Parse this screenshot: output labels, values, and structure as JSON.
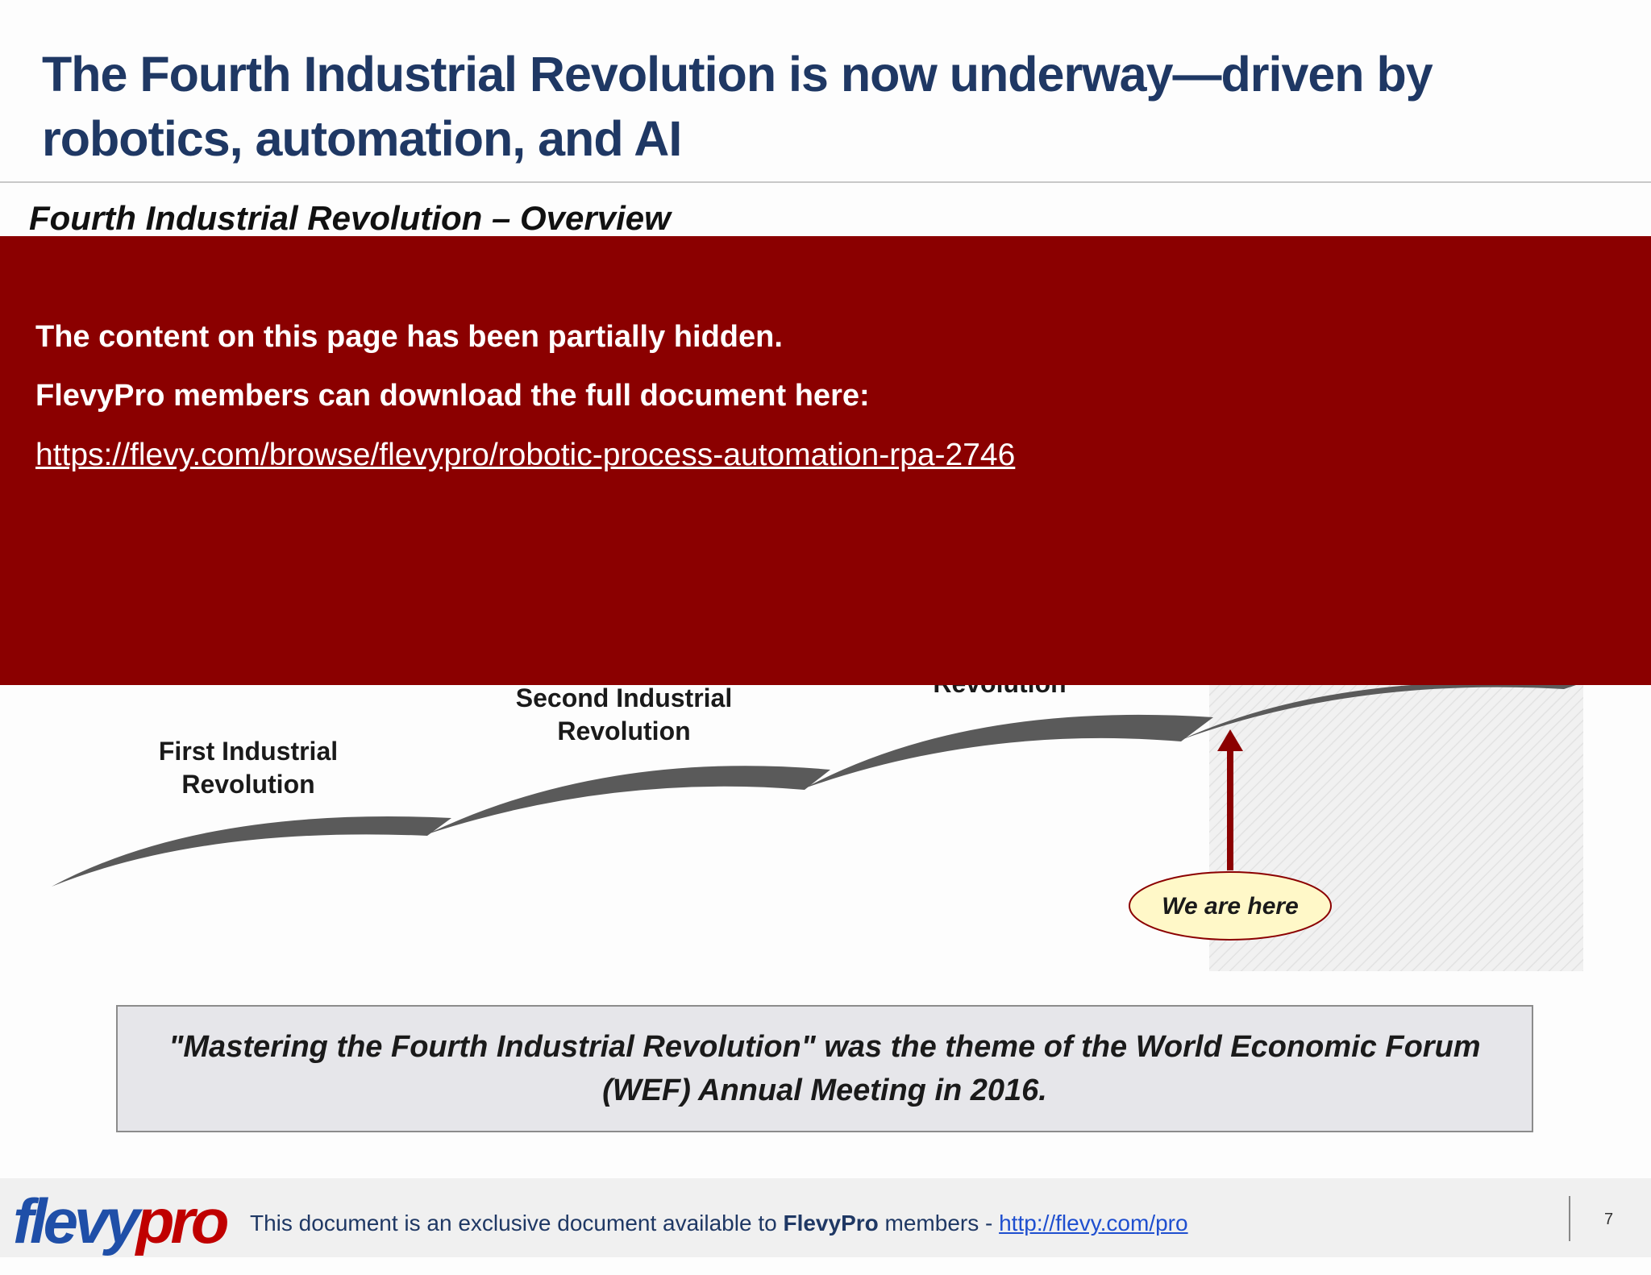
{
  "slide": {
    "title": "The Fourth Industrial Revolution is now underway—driven by robotics, automation, and AI",
    "subtitle": "Fourth Industrial Revolution – Overview"
  },
  "overlay": {
    "line1": "The content on this page has been partially hidden.",
    "line2": "FlevyPro members can download the full document here:",
    "link": "https://flevy.com/browse/flevypro/robotic-process-automation-rpa-2746"
  },
  "diagram": {
    "stage1_line1": "First Industrial",
    "stage1_line2": "Revolution",
    "stage2_line1": "Second Industrial",
    "stage2_line2": "Revolution",
    "stage3_partial": "Revolution",
    "marker": "We are here"
  },
  "quote": "\"Mastering the Fourth Industrial Revolution\" was the theme of the World Economic Forum (WEF) Annual Meeting in 2016.",
  "footer": {
    "logo_part1": "flevy",
    "logo_part2": "pro",
    "text_prefix": "This document is an exclusive document available to ",
    "text_bold": "FlevyPro",
    "text_suffix": " members - ",
    "link": "http://flevy.com/pro",
    "page_number": "7"
  },
  "colors": {
    "title": "#1f3864",
    "overlay": "#8b0000",
    "arrow": "#5a5a5a",
    "marker_fill": "#fff8c8",
    "marker_arrow": "#8b0000"
  }
}
